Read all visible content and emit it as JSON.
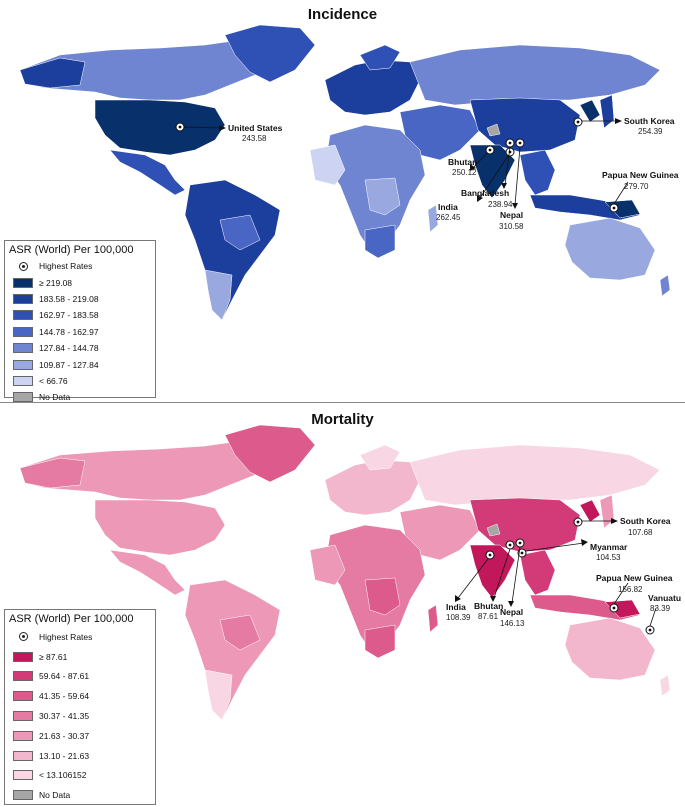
{
  "panels": [
    {
      "title": "Incidence",
      "legend": {
        "title": "ASR (World) Per 100,000",
        "highest_label": "Highest Rates",
        "classes": [
          {
            "label": "≥ 219.08",
            "color": "#08306b"
          },
          {
            "label": "183.58 - 219.08",
            "color": "#1c3f9e"
          },
          {
            "label": "162.97 - 183.58",
            "color": "#2f50b4"
          },
          {
            "label": "144.78 - 162.97",
            "color": "#4a66c4"
          },
          {
            "label": "127.84 - 144.78",
            "color": "#6f85d2"
          },
          {
            "label": "109.87 - 127.84",
            "color": "#9aa8e0"
          },
          {
            "label": "< 66.76",
            "color": "#cdd3f2"
          },
          {
            "label": "No Data",
            "color": "#a6a6a6"
          }
        ]
      },
      "callouts": [
        {
          "name": "United States",
          "value": "243.58"
        },
        {
          "name": "South Korea",
          "value": "254.39"
        },
        {
          "name": "Bhutan",
          "value": "250.12"
        },
        {
          "name": "Bangladesh",
          "value": "238.94"
        },
        {
          "name": "India",
          "value": "262.45"
        },
        {
          "name": "Nepal",
          "value": "310.58"
        },
        {
          "name": "Papua New Guinea",
          "value": "279.70"
        }
      ]
    },
    {
      "title": "Mortality",
      "legend": {
        "title": "ASR (World) Per 100,000",
        "highest_label": "Highest Rates",
        "classes": [
          {
            "label": "≥ 87.61",
            "color": "#c2185b"
          },
          {
            "label": "59.64 - 87.61",
            "color": "#d23a78"
          },
          {
            "label": "41.35 - 59.64",
            "color": "#dd5a8c"
          },
          {
            "label": "30.37 - 41.35",
            "color": "#e57aa2"
          },
          {
            "label": "21.63 - 30.37",
            "color": "#ec98b6"
          },
          {
            "label": "13.10 - 21.63",
            "color": "#f2b7cc"
          },
          {
            "label": "< 13.106152",
            "color": "#f9d6e3"
          },
          {
            "label": "No Data",
            "color": "#a6a6a6"
          }
        ]
      },
      "callouts": [
        {
          "name": "South Korea",
          "value": "107.68"
        },
        {
          "name": "Myanmar",
          "value": "104.53"
        },
        {
          "name": "Papua New Guinea",
          "value": "156.82"
        },
        {
          "name": "Vanuatu",
          "value": "83.39"
        },
        {
          "name": "India",
          "value": "108.39"
        },
        {
          "name": "Bhutan",
          "value": "87.61"
        },
        {
          "name": "Nepal",
          "value": "146.13"
        }
      ]
    }
  ]
}
